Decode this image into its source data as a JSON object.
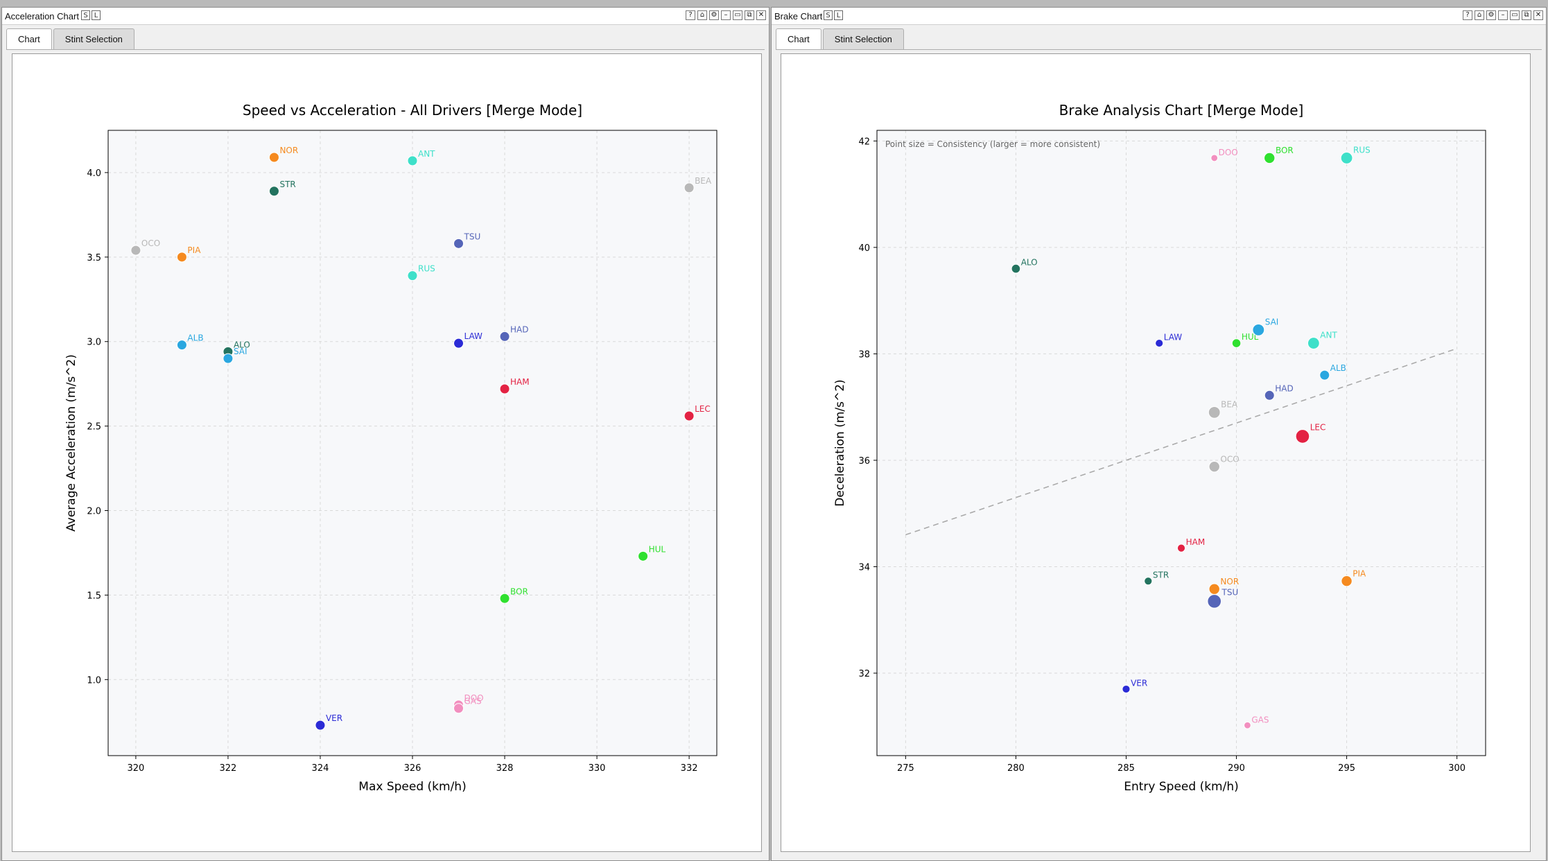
{
  "windows": [
    {
      "title": "Acceleration Chart",
      "title_icons": [
        "S",
        "L"
      ],
      "buttons": [
        "?",
        "⌂",
        "⚙",
        "–",
        "▭",
        "⧉",
        "✕"
      ],
      "tabs": [
        {
          "label": "Chart",
          "active": true
        },
        {
          "label": "Stint Selection",
          "active": false
        }
      ]
    },
    {
      "title": "Brake Chart",
      "title_icons": [
        "S",
        "L"
      ],
      "buttons": [
        "?",
        "⌂",
        "⚙",
        "–",
        "▭",
        "⧉",
        "✕"
      ],
      "tabs": [
        {
          "label": "Chart",
          "active": true
        },
        {
          "label": "Stint Selection",
          "active": false
        }
      ]
    }
  ],
  "chart_data": [
    {
      "type": "scatter",
      "title": "Speed vs Acceleration - All Drivers [Merge Mode]",
      "xlabel": "Max Speed (km/h)",
      "ylabel": "Average Acceleration (m/s^2)",
      "xlim": [
        319.4,
        332.6
      ],
      "ylim": [
        0.55,
        4.25
      ],
      "xticks": [
        "320",
        "322",
        "324",
        "326",
        "328",
        "330",
        "332"
      ],
      "xtick_values": [
        320,
        322,
        324,
        326,
        328,
        330,
        332
      ],
      "yticks": [
        "1.0",
        "1.5",
        "2.0",
        "2.5",
        "3.0",
        "3.5",
        "4.0"
      ],
      "ytick_values": [
        1.0,
        1.5,
        2.0,
        2.5,
        3.0,
        3.5,
        4.0
      ],
      "grid": true,
      "points": [
        {
          "label": "NOR",
          "x": 323,
          "y": 4.09,
          "color": "#f58a1f",
          "size": 1
        },
        {
          "label": "ANT",
          "x": 326,
          "y": 4.07,
          "color": "#3ee0c9",
          "size": 1
        },
        {
          "label": "STR",
          "x": 323,
          "y": 3.89,
          "color": "#23735f",
          "size": 1
        },
        {
          "label": "BEA",
          "x": 332,
          "y": 3.91,
          "color": "#b8b8b8",
          "size": 1
        },
        {
          "label": "TSU",
          "x": 327,
          "y": 3.58,
          "color": "#5565b8",
          "size": 1
        },
        {
          "label": "OCO",
          "x": 320,
          "y": 3.54,
          "color": "#b8b8b8",
          "size": 1
        },
        {
          "label": "PIA",
          "x": 321,
          "y": 3.5,
          "color": "#f58a1f",
          "size": 1
        },
        {
          "label": "RUS",
          "x": 326,
          "y": 3.39,
          "color": "#3ee0c9",
          "size": 1
        },
        {
          "label": "ALB",
          "x": 321,
          "y": 2.98,
          "color": "#2aa7e0",
          "size": 1
        },
        {
          "label": "ALO",
          "x": 322,
          "y": 2.94,
          "color": "#23735f",
          "size": 1
        },
        {
          "label": "SAI",
          "x": 322,
          "y": 2.9,
          "color": "#2aa7e0",
          "size": 1
        },
        {
          "label": "LAW",
          "x": 327,
          "y": 2.99,
          "color": "#2b2bd6",
          "size": 1
        },
        {
          "label": "HAD",
          "x": 328,
          "y": 3.03,
          "color": "#5565b8",
          "size": 1
        },
        {
          "label": "HAM",
          "x": 328,
          "y": 2.72,
          "color": "#e32243",
          "size": 1
        },
        {
          "label": "LEC",
          "x": 332,
          "y": 2.56,
          "color": "#e32243",
          "size": 1
        },
        {
          "label": "HUL",
          "x": 331,
          "y": 1.73,
          "color": "#2fe02f",
          "size": 1
        },
        {
          "label": "BOR",
          "x": 328,
          "y": 1.48,
          "color": "#2fe02f",
          "size": 1
        },
        {
          "label": "DOO",
          "x": 327,
          "y": 0.85,
          "color": "#f28fbf",
          "size": 1
        },
        {
          "label": "GAS",
          "x": 327,
          "y": 0.83,
          "color": "#f28fbf",
          "size": 1
        },
        {
          "label": "VER",
          "x": 324,
          "y": 0.73,
          "color": "#2b2bd6",
          "size": 1
        }
      ]
    },
    {
      "type": "scatter",
      "title": "Brake Analysis Chart [Merge Mode]",
      "xlabel": "Entry Speed (km/h)",
      "ylabel": "Deceleration (m/s^2)",
      "xlim": [
        273.7,
        301.3
      ],
      "ylim": [
        30.45,
        42.2
      ],
      "xticks": [
        "275",
        "280",
        "285",
        "290",
        "295",
        "300"
      ],
      "xtick_values": [
        275,
        280,
        285,
        290,
        295,
        300
      ],
      "yticks": [
        "32",
        "34",
        "36",
        "38",
        "40",
        "42"
      ],
      "ytick_values": [
        32,
        34,
        36,
        38,
        40,
        42
      ],
      "grid": true,
      "annotation": "Point size = Consistency (larger = more consistent)",
      "trendline": {
        "x": [
          275,
          300
        ],
        "y": [
          34.6,
          38.1
        ],
        "color": "#aaaaaa"
      },
      "points": [
        {
          "label": "DOO",
          "x": 289,
          "y": 41.68,
          "color": "#f28fbf",
          "size": 0.7
        },
        {
          "label": "BOR",
          "x": 291.5,
          "y": 41.68,
          "color": "#2fe02f",
          "size": 1.1
        },
        {
          "label": "RUS",
          "x": 295,
          "y": 41.68,
          "color": "#3ee0c9",
          "size": 1.2
        },
        {
          "label": "ALO",
          "x": 280,
          "y": 39.6,
          "color": "#23735f",
          "size": 0.9
        },
        {
          "label": "LAW",
          "x": 286.5,
          "y": 38.2,
          "color": "#2b2bd6",
          "size": 0.8
        },
        {
          "label": "HUL",
          "x": 290,
          "y": 38.2,
          "color": "#2fe02f",
          "size": 0.9
        },
        {
          "label": "SAI",
          "x": 291,
          "y": 38.45,
          "color": "#2aa7e0",
          "size": 1.2
        },
        {
          "label": "ANT",
          "x": 293.5,
          "y": 38.2,
          "color": "#3ee0c9",
          "size": 1.2
        },
        {
          "label": "ALB",
          "x": 294,
          "y": 37.6,
          "color": "#2aa7e0",
          "size": 1.0
        },
        {
          "label": "HAD",
          "x": 291.5,
          "y": 37.22,
          "color": "#5565b8",
          "size": 1.0
        },
        {
          "label": "BEA",
          "x": 289,
          "y": 36.9,
          "color": "#b8b8b8",
          "size": 1.2
        },
        {
          "label": "LEC",
          "x": 293,
          "y": 36.45,
          "color": "#e32243",
          "size": 1.4
        },
        {
          "label": "OCO",
          "x": 289,
          "y": 35.88,
          "color": "#b8b8b8",
          "size": 1.1
        },
        {
          "label": "HAM",
          "x": 287.5,
          "y": 34.35,
          "color": "#e32243",
          "size": 0.8
        },
        {
          "label": "STR",
          "x": 286,
          "y": 33.73,
          "color": "#23735f",
          "size": 0.8
        },
        {
          "label": "NOR",
          "x": 289,
          "y": 33.58,
          "color": "#f58a1f",
          "size": 1.1
        },
        {
          "label": "PIA",
          "x": 295,
          "y": 33.73,
          "color": "#f58a1f",
          "size": 1.1
        },
        {
          "label": "TSU",
          "x": 289,
          "y": 33.35,
          "color": "#5565b8",
          "size": 1.4
        },
        {
          "label": "VER",
          "x": 285,
          "y": 31.7,
          "color": "#2b2bd6",
          "size": 0.8
        },
        {
          "label": "GAS",
          "x": 290.5,
          "y": 31.02,
          "color": "#f28fbf",
          "size": 0.7
        }
      ]
    }
  ]
}
